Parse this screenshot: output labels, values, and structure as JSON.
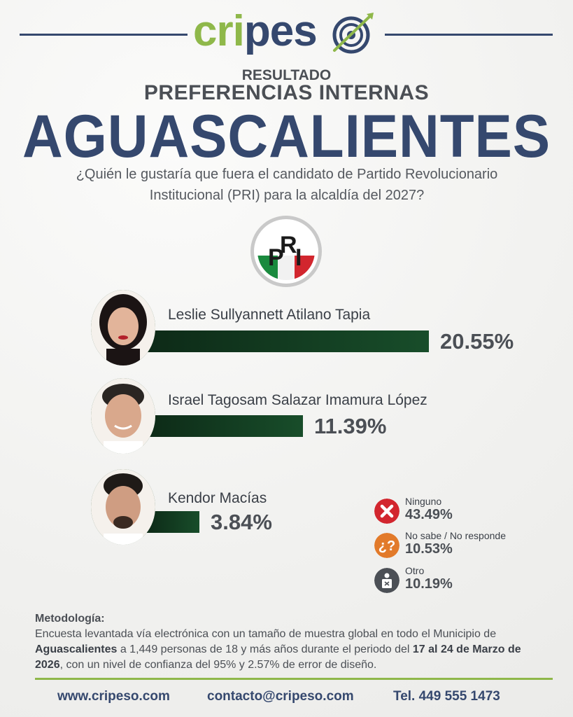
{
  "brand": {
    "name_part1": "cripes",
    "name_part2": "o",
    "line_color": "#35486e",
    "green": "#8fb84a",
    "blue": "#35486e"
  },
  "header": {
    "kicker": "RESULTADO",
    "subtitle": "PREFERENCIAS INTERNAS",
    "title": "AGUASCALIENTES",
    "question_line1": "¿Quién le gustaría que fuera el candidato de Partido Revolucionario",
    "question_line2": "Institucional (PRI) para la alcaldía del 2027?"
  },
  "party_logo": {
    "letters": [
      "P",
      "R",
      "I"
    ],
    "colors": [
      "#1a8a3e",
      "#ffffff",
      "#d2262e"
    ]
  },
  "chart_data": {
    "type": "bar",
    "orientation": "horizontal",
    "categories": [
      "Leslie Sullyannett Atilano Tapia",
      "Israel Tagosam Salazar Imamura López",
      "Kendor Macías"
    ],
    "values": [
      20.55,
      11.39,
      3.84
    ],
    "value_labels": [
      "20.55%",
      "11.39%",
      "3.84%"
    ],
    "bar_color": "#184d2a",
    "other_responses": [
      {
        "label": "Ninguno",
        "value": 43.49,
        "value_label": "43.49%",
        "icon": "x-icon",
        "color": "#d2262e"
      },
      {
        "label": "No sabe / No responde",
        "value": 10.53,
        "value_label": "10.53%",
        "icon": "question-icon",
        "color": "#e27a2a"
      },
      {
        "label": "Otro",
        "value": 10.19,
        "value_label": "10.19%",
        "icon": "ballot-icon",
        "color": "#4b4f55"
      }
    ]
  },
  "methodology": {
    "heading": "Metodología:",
    "text_1": "Encuesta levantada vía electrónica con un tamaño de muestra global en todo el Municipio de ",
    "place": "Aguascalientes",
    "text_2": " a 1,449 personas de 18 y más años durante el periodo del ",
    "period": "17 al 24 de Marzo de 2026",
    "text_3": ", con un nivel de confianza del 95% y 2.57% de error de diseño."
  },
  "footer": {
    "website": "www.cripeso.com",
    "email": "contacto@cripeso.com",
    "phone": "Tel. 449 555 1473"
  }
}
